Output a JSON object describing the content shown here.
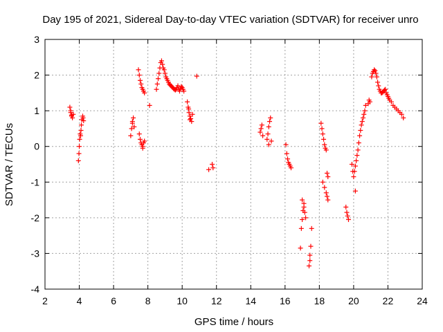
{
  "chart_data": {
    "type": "scatter",
    "title": "Day 195 of 2021, Sidereal Day-to-day VTEC variation (SDTVAR) for receiver unro",
    "xlabel": "GPS time / hours",
    "ylabel": "SDTVAR / TECUs",
    "xlim": [
      2,
      24
    ],
    "ylim": [
      -4,
      3
    ],
    "x_ticks": [
      "2",
      "4",
      "6",
      "8",
      "10",
      "12",
      "14",
      "16",
      "18",
      "20",
      "22",
      "24"
    ],
    "y_ticks": [
      "-4",
      "-3",
      "-2",
      "-1",
      "0",
      "1",
      "2",
      "3"
    ],
    "grid": true,
    "marker": "plus",
    "marker_color": "#ff0000",
    "series": [
      {
        "name": "SDTVAR",
        "x": [
          3.45,
          3.5,
          3.55,
          3.6,
          3.65,
          3.55,
          3.5,
          3.95,
          3.98,
          4.0,
          4.02,
          4.05,
          4.08,
          4.1,
          4.12,
          4.15,
          4.2,
          4.22,
          4.25,
          7.0,
          7.05,
          7.1,
          7.15,
          7.2,
          7.1,
          7.45,
          7.5,
          7.55,
          7.6,
          7.65,
          7.7,
          7.75,
          7.8,
          7.5,
          7.55,
          7.6,
          7.65,
          7.7,
          7.75,
          7.8,
          7.7,
          8.1,
          8.5,
          8.55,
          8.6,
          8.65,
          8.7,
          8.75,
          8.8,
          8.85,
          8.9,
          8.95,
          9.0,
          9.05,
          9.1,
          9.15,
          9.2,
          9.25,
          9.3,
          9.35,
          9.4,
          9.45,
          9.5,
          9.55,
          9.6,
          9.65,
          9.7,
          9.75,
          9.8,
          9.85,
          9.9,
          9.95,
          10.0,
          10.05,
          10.1,
          10.3,
          10.35,
          10.4,
          10.45,
          10.5,
          10.55,
          10.6,
          10.38,
          10.45,
          10.85,
          11.55,
          11.75,
          11.8,
          14.55,
          14.6,
          14.65,
          14.7,
          14.95,
          15.0,
          15.05,
          15.1,
          15.15,
          15.2,
          15.05,
          16.05,
          16.1,
          16.15,
          16.2,
          16.25,
          16.3,
          16.35,
          16.9,
          16.95,
          17.0,
          17.05,
          17.1,
          17.15,
          17.2,
          17.0,
          17.1,
          17.4,
          17.45,
          17.5,
          17.55,
          17.45,
          18.1,
          18.15,
          18.2,
          18.25,
          18.3,
          18.35,
          18.4,
          18.45,
          18.5,
          18.2,
          18.3,
          18.4,
          18.45,
          18.5,
          19.55,
          19.6,
          19.65,
          19.7,
          19.9,
          19.95,
          20.0,
          20.05,
          20.1,
          20.15,
          20.2,
          20.25,
          20.3,
          20.35,
          20.4,
          20.45,
          20.5,
          20.55,
          20.6,
          20.65,
          20.7,
          20.1,
          20.85,
          20.9,
          20.95,
          21.05,
          21.1,
          21.15,
          21.2,
          21.25,
          21.3,
          21.35,
          21.4,
          21.45,
          21.5,
          21.55,
          21.6,
          21.65,
          21.7,
          21.75,
          21.8,
          21.85,
          21.9,
          21.95,
          22.0,
          22.05,
          22.1,
          22.2,
          22.3,
          22.4,
          22.5,
          22.6,
          22.7,
          22.8,
          22.9
        ],
        "y": [
          1.1,
          0.95,
          0.85,
          0.8,
          0.9,
          0.88,
          1.0,
          -0.4,
          -0.2,
          0.0,
          0.2,
          0.35,
          0.3,
          0.45,
          0.6,
          0.75,
          0.85,
          0.8,
          0.72,
          0.3,
          0.5,
          0.7,
          0.8,
          0.55,
          0.65,
          2.15,
          2.0,
          1.85,
          1.75,
          1.65,
          1.6,
          1.55,
          1.5,
          0.35,
          0.2,
          0.1,
          0.05,
          0.0,
          0.1,
          0.15,
          -0.05,
          1.15,
          1.6,
          1.75,
          1.9,
          2.05,
          2.2,
          2.35,
          2.4,
          2.3,
          2.2,
          2.15,
          2.05,
          1.95,
          1.9,
          1.85,
          1.8,
          1.75,
          1.72,
          1.7,
          1.68,
          1.65,
          1.62,
          1.6,
          1.58,
          1.6,
          1.65,
          1.7,
          1.6,
          1.55,
          1.62,
          1.68,
          1.65,
          1.6,
          1.55,
          1.25,
          1.1,
          0.95,
          0.85,
          0.78,
          0.7,
          0.9,
          1.05,
          0.75,
          1.97,
          -0.65,
          -0.5,
          -0.6,
          0.4,
          0.5,
          0.6,
          0.3,
          0.2,
          0.35,
          0.55,
          0.7,
          0.8,
          0.15,
          0.05,
          0.05,
          -0.2,
          -0.35,
          -0.45,
          -0.5,
          -0.55,
          -0.6,
          -2.85,
          -2.3,
          -2.05,
          -1.8,
          -1.7,
          -1.85,
          -2.0,
          -1.5,
          -1.6,
          -3.35,
          -3.05,
          -2.8,
          -2.3,
          -3.2,
          0.65,
          0.5,
          0.35,
          0.2,
          0.05,
          -0.05,
          -0.1,
          -0.75,
          -0.85,
          -1.0,
          -1.15,
          -1.3,
          -1.4,
          -1.5,
          -1.7,
          -1.85,
          -1.95,
          -2.05,
          -0.5,
          -0.7,
          -0.85,
          -0.7,
          -0.55,
          -0.4,
          -0.25,
          -0.1,
          0.1,
          0.3,
          0.45,
          0.6,
          0.7,
          0.8,
          0.9,
          1.0,
          1.15,
          -1.25,
          1.2,
          1.3,
          1.25,
          1.95,
          2.05,
          2.1,
          2.15,
          2.12,
          2.05,
          1.95,
          1.8,
          1.7,
          1.6,
          1.55,
          1.5,
          1.5,
          1.52,
          1.55,
          1.58,
          1.6,
          1.5,
          1.45,
          1.4,
          1.35,
          1.3,
          1.25,
          1.15,
          1.1,
          1.05,
          1.0,
          0.95,
          0.9,
          0.8
        ]
      }
    ]
  }
}
